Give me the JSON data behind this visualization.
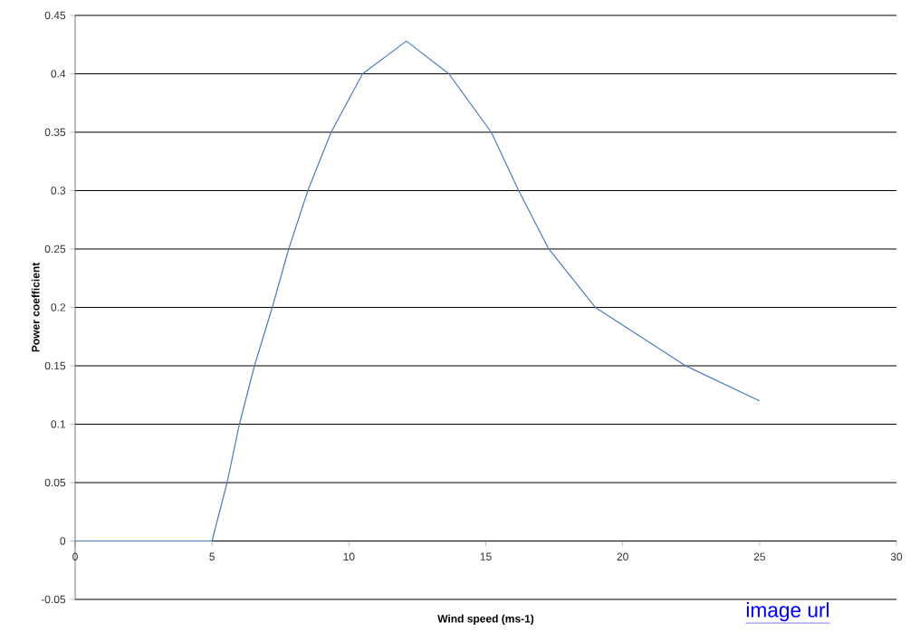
{
  "chart_data": {
    "type": "line",
    "xlabel": "Wind speed (ms-1)",
    "ylabel": "Power coefficient",
    "x": [
      0,
      4,
      5,
      5.55,
      6.0,
      6.55,
      7.2,
      7.8,
      8.5,
      9.35,
      10.5,
      12.1,
      13.65,
      15.2,
      16.2,
      17.3,
      19.0,
      22.3,
      25
    ],
    "series": [
      {
        "color": "#4a7ebb",
        "values": [
          0,
          0,
          0,
          0.05,
          0.1,
          0.15,
          0.2,
          0.25,
          0.3,
          0.35,
          0.4,
          0.428,
          0.4,
          0.35,
          0.3,
          0.25,
          0.2,
          0.15,
          0.12
        ]
      }
    ],
    "xlim": [
      0,
      30
    ],
    "ylim": [
      -0.05,
      0.45
    ],
    "xticks": [
      0,
      5,
      10,
      15,
      20,
      25,
      30
    ],
    "yticks": [
      -0.05,
      0,
      0.05,
      0.1,
      0.15,
      0.2,
      0.25,
      0.3,
      0.35,
      0.4,
      0.45
    ],
    "grid": "y",
    "marker": "none",
    "line_style": "solid",
    "annotations": [
      "image url"
    ]
  }
}
